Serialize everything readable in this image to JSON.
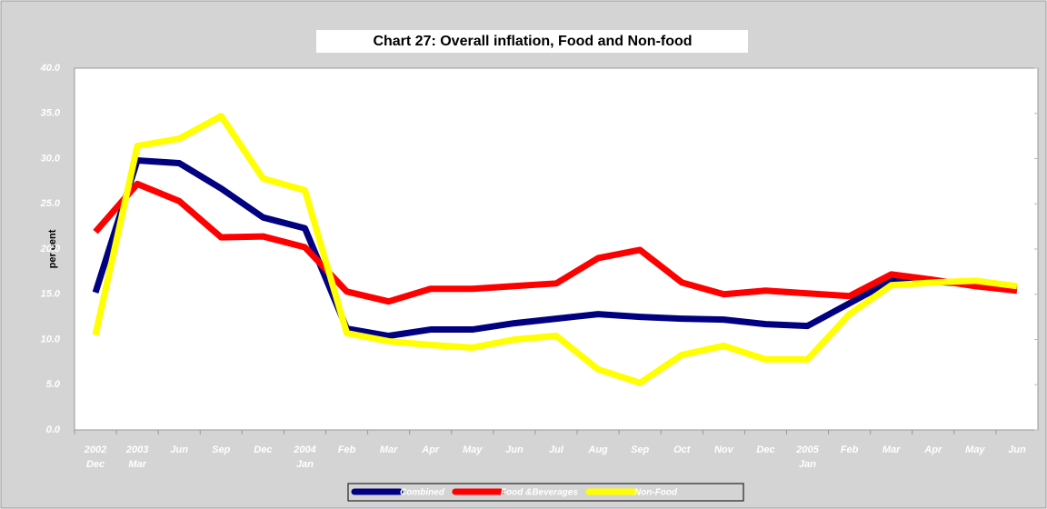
{
  "chart_data": {
    "type": "line",
    "title": "Chart 27: Overall inflation, Food and Non-food",
    "y_label": "per cent",
    "categories": [
      "2002 Dec",
      "2003 Mar",
      "Jun",
      "Sep",
      "Dec",
      "2004 Jan",
      "Feb",
      "Mar",
      "Apr",
      "May",
      "Jun",
      "Jul",
      "Aug",
      "Sep",
      "Oct",
      "Nov",
      "Dec",
      "2005 Jan",
      "Feb",
      "Mar",
      "Apr",
      "May",
      "Jun"
    ],
    "series": [
      {
        "name": "Combined",
        "color": "#000080",
        "values": [
          15.2,
          29.8,
          29.5,
          26.7,
          23.5,
          22.3,
          11.2,
          10.4,
          11.1,
          11.1,
          11.8,
          12.3,
          12.8,
          12.5,
          12.3,
          12.2,
          11.7,
          11.5,
          14.0,
          16.5,
          16.4,
          16.1,
          15.7
        ]
      },
      {
        "name": "Food &Beverages",
        "color": "#ff0000",
        "values": [
          21.9,
          27.2,
          25.3,
          21.3,
          21.4,
          20.2,
          15.3,
          14.2,
          15.6,
          15.6,
          15.9,
          16.2,
          19.0,
          19.9,
          16.3,
          15.0,
          15.4,
          15.1,
          14.8,
          17.2,
          16.6,
          15.9,
          15.4
        ]
      },
      {
        "name": "Non-Food",
        "color": "#ffff00",
        "values": [
          10.5,
          31.4,
          32.2,
          34.7,
          27.8,
          26.5,
          10.7,
          9.8,
          9.4,
          9.1,
          10.0,
          10.4,
          6.7,
          5.2,
          8.3,
          9.3,
          7.8,
          7.8,
          12.8,
          16.0,
          16.3,
          16.5,
          15.9
        ]
      }
    ],
    "ylim": [
      0,
      40
    ],
    "yticks": [
      {
        "value": 0,
        "label": "0.0"
      },
      {
        "value": 5,
        "label": "5.0"
      },
      {
        "value": 10,
        "label": "10.0"
      },
      {
        "value": 15,
        "label": "15.0"
      },
      {
        "value": 20,
        "label": "20.0"
      },
      {
        "value": 25,
        "label": "25.0"
      },
      {
        "value": 30,
        "label": "30.0"
      },
      {
        "value": 35,
        "label": "35.0"
      },
      {
        "value": 40,
        "label": "40.0"
      }
    ],
    "grid": false,
    "legend": "bottom"
  }
}
